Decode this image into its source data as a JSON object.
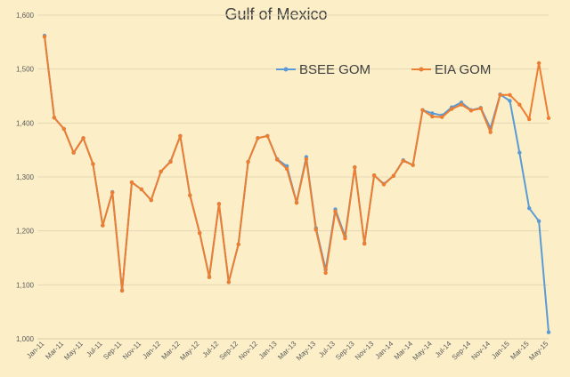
{
  "chart_data": {
    "type": "line",
    "title": "Gulf of Mexico",
    "xlabel": "",
    "ylabel": "",
    "ylim": [
      1000,
      1600
    ],
    "yticks": [
      "1,000",
      "1,100",
      "1,200",
      "1,300",
      "1,400",
      "1,500",
      "1,600"
    ],
    "ytick_values": [
      1000,
      1100,
      1200,
      1300,
      1400,
      1500,
      1600
    ],
    "grid": true,
    "legend_position": "top-right",
    "categories": [
      "Jan-11",
      "Feb-11",
      "Mar-11",
      "Apr-11",
      "May-11",
      "Jun-11",
      "Jul-11",
      "Aug-11",
      "Sep-11",
      "Oct-11",
      "Nov-11",
      "Dec-11",
      "Jan-12",
      "Feb-12",
      "Mar-12",
      "Apr-12",
      "May-12",
      "Jun-12",
      "Jul-12",
      "Aug-12",
      "Sep-12",
      "Oct-12",
      "Nov-12",
      "Dec-12",
      "Jan-13",
      "Feb-13",
      "Mar-13",
      "Apr-13",
      "May-13",
      "Jun-13",
      "Jul-13",
      "Aug-13",
      "Sep-13",
      "Oct-13",
      "Nov-13",
      "Dec-13",
      "Jan-14",
      "Feb-14",
      "Mar-14",
      "Apr-14",
      "May-14",
      "Jun-14",
      "Jul-14",
      "Aug-14",
      "Sep-14",
      "Oct-14",
      "Nov-14",
      "Dec-14",
      "Jan-15",
      "Feb-15",
      "Mar-15",
      "Apr-15",
      "May-15"
    ],
    "xtick_labels": [
      "Jan-11",
      "Mar-11",
      "May-11",
      "Jul-11",
      "Sep-11",
      "Nov-11",
      "Jan-12",
      "Mar-12",
      "May-12",
      "Jul-12",
      "Sep-12",
      "Nov-12",
      "Jan-13",
      "Mar-13",
      "May-13",
      "Jul-13",
      "Sep-13",
      "Nov-13",
      "Jan-14",
      "Mar-14",
      "May-14",
      "Jul-14",
      "Sep-14",
      "Nov-14",
      "Jan-15",
      "Mar-15",
      "May-15"
    ],
    "series": [
      {
        "name": "BSEE GOM",
        "color": "#5B9BD5",
        "values": [
          1562,
          1410,
          1389,
          1345,
          1372,
          1324,
          1210,
          1272,
          1090,
          1290,
          1277,
          1257,
          1310,
          1329,
          1376,
          1266,
          1196,
          1115,
          1250,
          1105,
          1175,
          1328,
          1372,
          1376,
          1333,
          1320,
          1253,
          1337,
          1205,
          1128,
          1240,
          1190,
          1318,
          1177,
          1303,
          1287,
          1302,
          1331,
          1322,
          1424,
          1418,
          1414,
          1429,
          1438,
          1424,
          1428,
          1390,
          1453,
          1441,
          1345,
          1242,
          1218,
          1012
        ]
      },
      {
        "name": "EIA GOM",
        "color": "#ED7D31",
        "values": [
          1560,
          1410,
          1389,
          1345,
          1372,
          1324,
          1210,
          1271,
          1089,
          1290,
          1277,
          1257,
          1310,
          1328,
          1376,
          1266,
          1196,
          1114,
          1250,
          1105,
          1175,
          1328,
          1372,
          1376,
          1332,
          1315,
          1252,
          1333,
          1202,
          1122,
          1236,
          1186,
          1318,
          1176,
          1303,
          1286,
          1302,
          1330,
          1322,
          1424,
          1412,
          1411,
          1426,
          1434,
          1423,
          1427,
          1383,
          1452,
          1452,
          1434,
          1407,
          1511,
          1409
        ]
      }
    ]
  }
}
